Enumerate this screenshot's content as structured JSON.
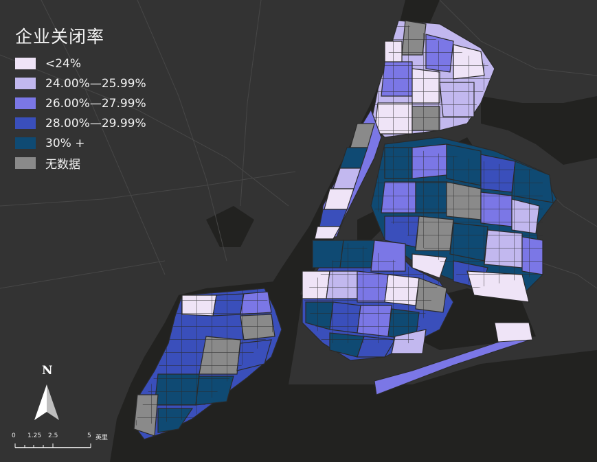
{
  "legend": {
    "title": "企业关闭率",
    "items": [
      {
        "label": "<24%",
        "color": "#efe4f7"
      },
      {
        "label": "24.00%—25.99%",
        "color": "#c2b8ef"
      },
      {
        "label": "26.00%—27.99%",
        "color": "#7b77e6"
      },
      {
        "label": "28.00%—29.99%",
        "color": "#3a4fbb"
      },
      {
        "label": "30% +",
        "color": "#0f4a73"
      },
      {
        "label": "无数据",
        "color": "#8a8a8a"
      }
    ]
  },
  "north_arrow": {
    "letter": "N"
  },
  "scale_bar": {
    "ticks": [
      "0",
      "1.25",
      "2.5",
      "5"
    ],
    "unit": "英里"
  },
  "colors": {
    "water": "#222220",
    "land": "#333333",
    "roads": "#444444"
  }
}
